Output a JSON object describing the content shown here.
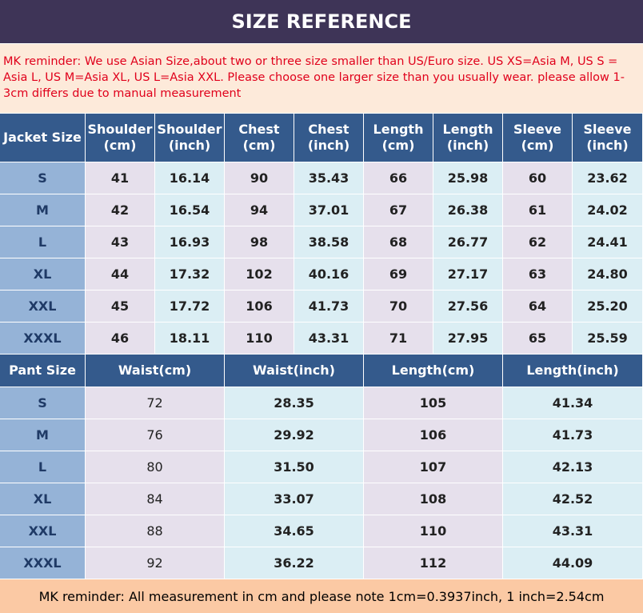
{
  "header": {
    "title": "SIZE REFERENCE"
  },
  "reminder": "MK reminder: We use Asian Size,about two or three size smaller than US/Euro size. US XS=Asia M,  US S = Asia L,  US M=Asia XL,  US L=Asia XXL. Please choose one larger size than you usually wear. please allow 1-3cm differs due to manual measurement",
  "jacket_table": {
    "columns": [
      "Jacket Size",
      "Shoulder (cm)",
      "Shoulder (inch)",
      "Chest (cm)",
      "Chest (inch)",
      "Length (cm)",
      "Length (inch)",
      "Sleeve (cm)",
      "Sleeve (inch)"
    ],
    "rows": [
      [
        "S",
        "41",
        "16.14",
        "90",
        "35.43",
        "66",
        "25.98",
        "60",
        "23.62"
      ],
      [
        "M",
        "42",
        "16.54",
        "94",
        "37.01",
        "67",
        "26.38",
        "61",
        "24.02"
      ],
      [
        "L",
        "43",
        "16.93",
        "98",
        "38.58",
        "68",
        "26.77",
        "62",
        "24.41"
      ],
      [
        "XL",
        "44",
        "17.32",
        "102",
        "40.16",
        "69",
        "27.17",
        "63",
        "24.80"
      ],
      [
        "XXL",
        "45",
        "17.72",
        "106",
        "41.73",
        "70",
        "27.56",
        "64",
        "25.20"
      ],
      [
        "XXXL",
        "46",
        "18.11",
        "110",
        "43.31",
        "71",
        "27.95",
        "65",
        "25.59"
      ]
    ]
  },
  "pant_table": {
    "columns": [
      "Pant Size",
      "Waist(cm)",
      "Waist(inch)",
      "Length(cm)",
      "Length(inch)"
    ],
    "rows": [
      [
        "S",
        "72",
        "28.35",
        "105",
        "41.34"
      ],
      [
        "M",
        "76",
        "29.92",
        "106",
        "41.73"
      ],
      [
        "L",
        "80",
        "31.50",
        "107",
        "42.13"
      ],
      [
        "XL",
        "84",
        "33.07",
        "108",
        "42.52"
      ],
      [
        "XXL",
        "88",
        "34.65",
        "110",
        "43.31"
      ],
      [
        "XXXL",
        "92",
        "36.22",
        "112",
        "44.09"
      ]
    ]
  },
  "footer": "MK reminder: All measurement in cm and please note 1cm=0.3937inch, 1 inch=2.54cm"
}
